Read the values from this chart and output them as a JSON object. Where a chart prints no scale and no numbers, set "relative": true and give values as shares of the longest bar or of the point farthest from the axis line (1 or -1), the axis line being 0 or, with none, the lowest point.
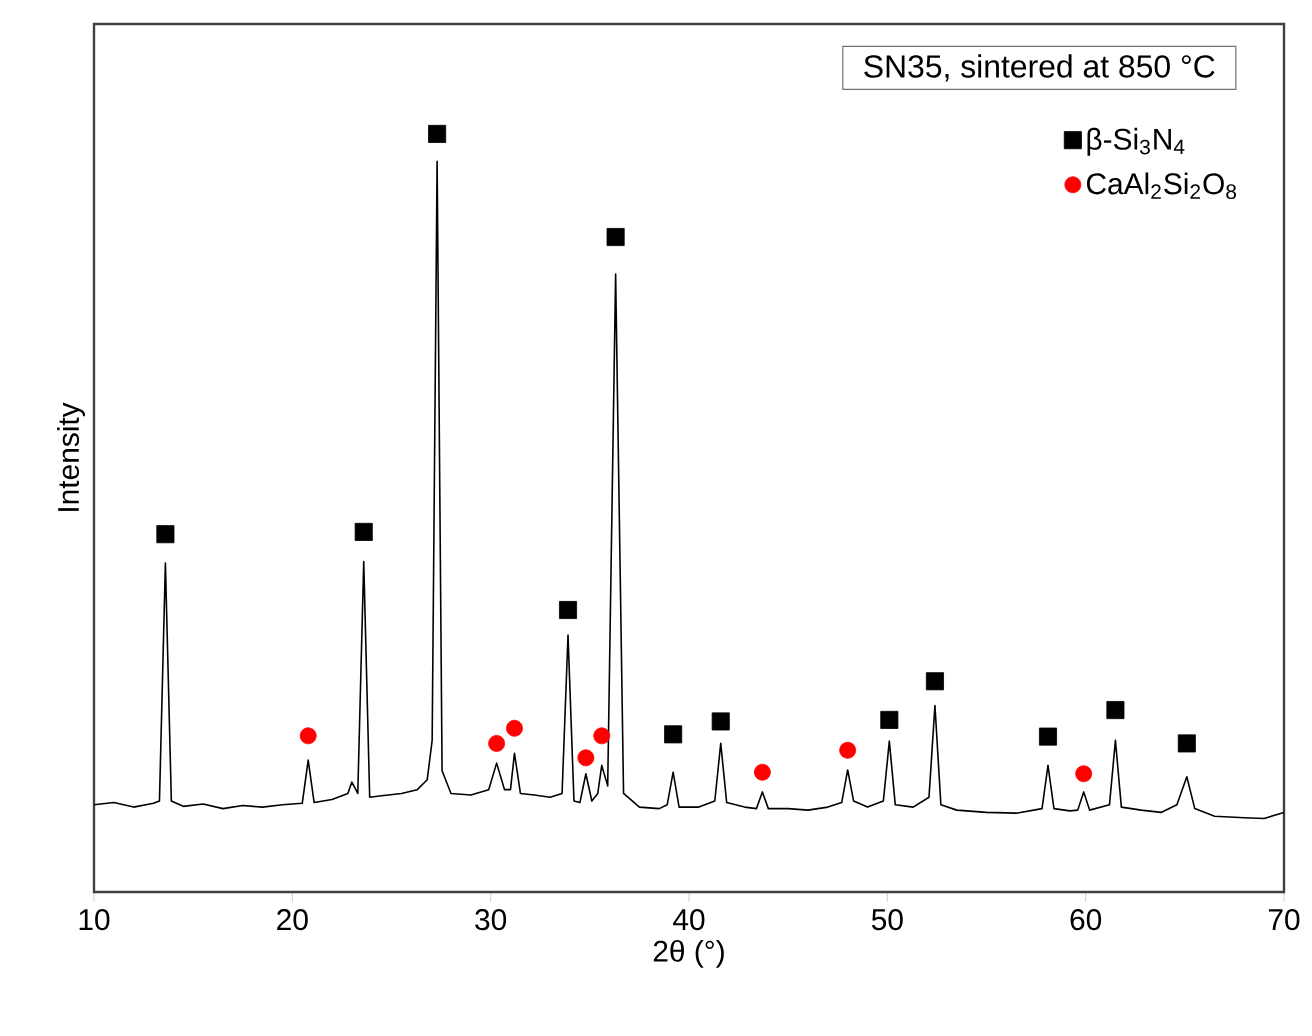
{
  "chart_data": {
    "type": "line",
    "title": "SN35, sintered at 850 °C",
    "xlabel": "2θ (°)",
    "ylabel": "Intensity",
    "relative": true,
    "legend": "top right",
    "xlim": [
      10,
      70
    ],
    "xticks": [
      10,
      20,
      30,
      40,
      50,
      60,
      70
    ],
    "series": [
      {
        "color": "#000000",
        "x": [
          10,
          11,
          12,
          13,
          13.3,
          13.6,
          13.9,
          14.5,
          15.5,
          16.5,
          17.5,
          18.5,
          19.5,
          20.5,
          20.8,
          21.1,
          22,
          22.8,
          23.0,
          23.3,
          23.6,
          23.9,
          24.5,
          25.5,
          26.3,
          26.8,
          27.05,
          27.3,
          27.55,
          28,
          29,
          29.9,
          30.3,
          30.7,
          31.0,
          31.2,
          31.5,
          32.2,
          33,
          33.6,
          33.9,
          34.2,
          34.5,
          34.8,
          35.1,
          35.4,
          35.6,
          35.9,
          36.3,
          36.7,
          37.5,
          38.5,
          38.9,
          39.2,
          39.5,
          40.5,
          41.3,
          41.6,
          41.9,
          42.8,
          43.4,
          43.7,
          44,
          45,
          46,
          47,
          47.7,
          48,
          48.3,
          49,
          49.8,
          50.1,
          50.4,
          51.3,
          52.1,
          52.4,
          52.7,
          53.5,
          55,
          56.5,
          57.8,
          58.1,
          58.4,
          59.2,
          59.6,
          59.9,
          60.2,
          61.2,
          61.5,
          61.8,
          62.8,
          63.8,
          64.6,
          65.1,
          65.5,
          66.5,
          68,
          69,
          70
        ],
        "values": [
          0.115,
          0.118,
          0.112,
          0.117,
          0.12,
          0.434,
          0.12,
          0.113,
          0.116,
          0.11,
          0.114,
          0.112,
          0.115,
          0.117,
          0.174,
          0.118,
          0.122,
          0.13,
          0.145,
          0.13,
          0.436,
          0.125,
          0.127,
          0.13,
          0.135,
          0.148,
          0.2,
          0.964,
          0.16,
          0.13,
          0.128,
          0.135,
          0.17,
          0.135,
          0.135,
          0.183,
          0.13,
          0.128,
          0.125,
          0.13,
          0.339,
          0.12,
          0.118,
          0.156,
          0.12,
          0.13,
          0.167,
          0.14,
          0.815,
          0.13,
          0.112,
          0.11,
          0.115,
          0.158,
          0.112,
          0.112,
          0.12,
          0.196,
          0.118,
          0.112,
          0.11,
          0.132,
          0.11,
          0.11,
          0.108,
          0.112,
          0.118,
          0.161,
          0.12,
          0.112,
          0.12,
          0.199,
          0.115,
          0.112,
          0.125,
          0.246,
          0.115,
          0.108,
          0.105,
          0.104,
          0.11,
          0.167,
          0.11,
          0.107,
          0.108,
          0.132,
          0.108,
          0.115,
          0.2,
          0.112,
          0.108,
          0.105,
          0.115,
          0.152,
          0.11,
          0.1,
          0.098,
          0.097,
          0.105
        ]
      },
      {
        "type": "scatter",
        "name": "β-Si$_{3}$N$_{4}$",
        "color": "#000000",
        "marker": "square",
        "x": [
          13.6,
          23.6,
          27.3,
          33.9,
          36.3,
          39.2,
          41.6,
          50.1,
          52.4,
          58.1,
          61.5,
          65.1
        ],
        "values": [
          0.472,
          0.475,
          1,
          0.372,
          0.864,
          0.208,
          0.225,
          0.227,
          0.278,
          0.205,
          0.24,
          0.196
        ]
      },
      {
        "type": "scatter",
        "name": "CaAl$_{2}$Si$_{2}$O$_{8}$",
        "color": "#ff0000",
        "marker": "circle",
        "x": [
          20.8,
          30.3,
          31.2,
          34.8,
          35.6,
          43.7,
          48.0,
          59.9
        ],
        "values": [
          0.206,
          0.196,
          0.216,
          0.177,
          0.206,
          0.158,
          0.187,
          0.156
        ]
      }
    ]
  }
}
